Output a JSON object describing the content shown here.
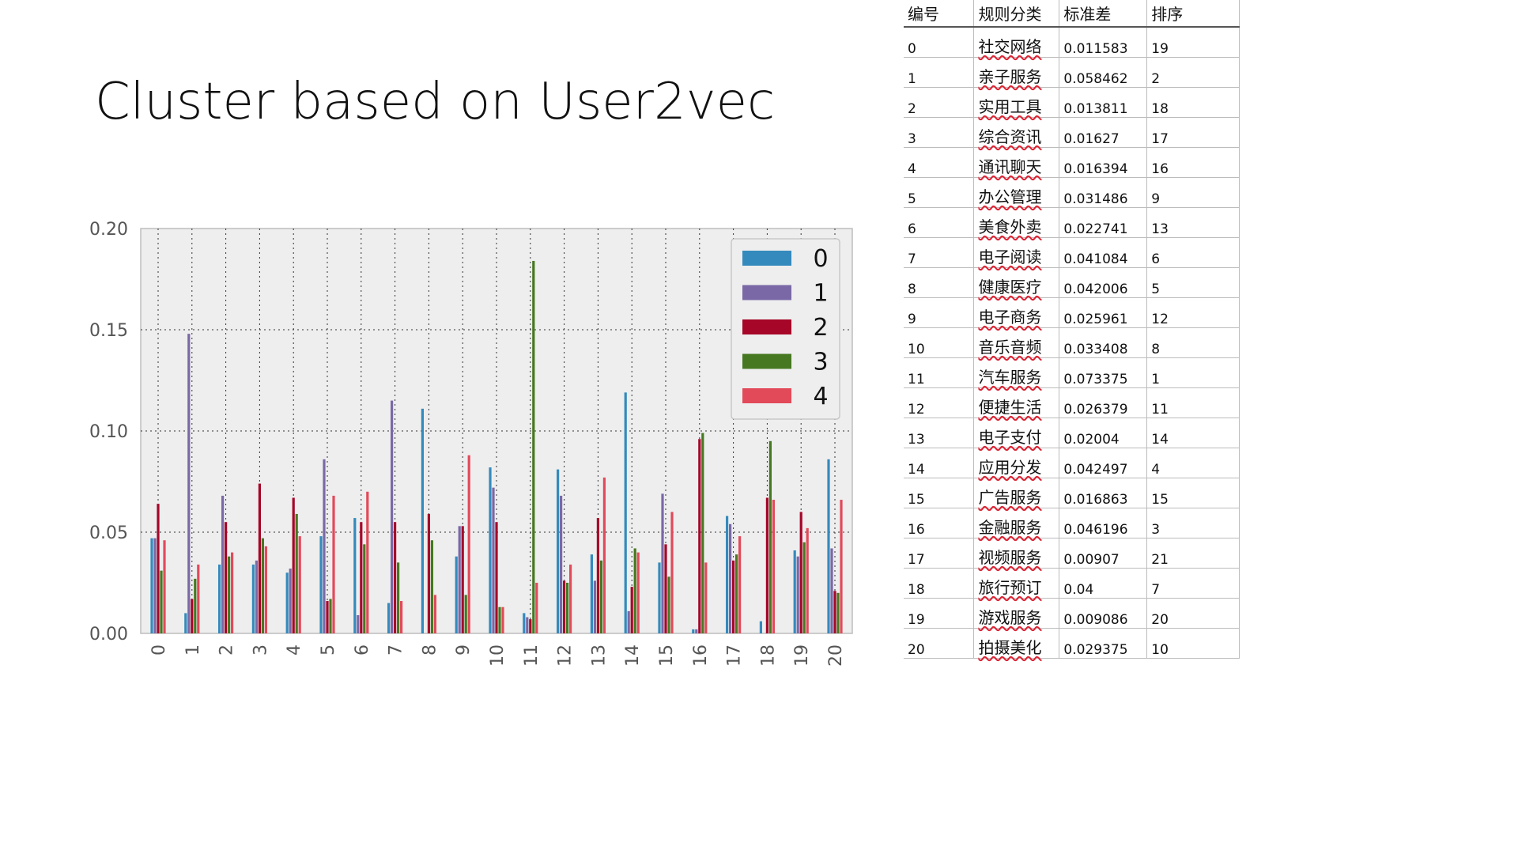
{
  "slide": {
    "title": "Cluster based on User2vec"
  },
  "colors": {
    "c0": "#348ABD",
    "c1": "#7A68A6",
    "c2": "#A60628",
    "c3": "#467821",
    "c4": "#E24A5A",
    "plot_bg": "#EEEEEE"
  },
  "table": {
    "headers": [
      "编号",
      "规则分类",
      "标准差",
      "排序"
    ],
    "rows": [
      [
        "0",
        "社交网络",
        "0.011583",
        "19"
      ],
      [
        "1",
        "亲子服务",
        "0.058462",
        "2"
      ],
      [
        "2",
        "实用工具",
        "0.013811",
        "18"
      ],
      [
        "3",
        "综合资讯",
        "0.01627",
        "17"
      ],
      [
        "4",
        "通讯聊天",
        "0.016394",
        "16"
      ],
      [
        "5",
        "办公管理",
        "0.031486",
        "9"
      ],
      [
        "6",
        "美食外卖",
        "0.022741",
        "13"
      ],
      [
        "7",
        "电子阅读",
        "0.041084",
        "6"
      ],
      [
        "8",
        "健康医疗",
        "0.042006",
        "5"
      ],
      [
        "9",
        "电子商务",
        "0.025961",
        "12"
      ],
      [
        "10",
        "音乐音频",
        "0.033408",
        "8"
      ],
      [
        "11",
        "汽车服务",
        "0.073375",
        "1"
      ],
      [
        "12",
        "便捷生活",
        "0.026379",
        "11"
      ],
      [
        "13",
        "电子支付",
        "0.02004",
        "14"
      ],
      [
        "14",
        "应用分发",
        "0.042497",
        "4"
      ],
      [
        "15",
        "广告服务",
        "0.016863",
        "15"
      ],
      [
        "16",
        "金融服务",
        "0.046196",
        "3"
      ],
      [
        "17",
        "视频服务",
        "0.00907",
        "21"
      ],
      [
        "18",
        "旅行预订",
        "0.04",
        "7"
      ],
      [
        "19",
        "游戏服务",
        "0.009086",
        "20"
      ],
      [
        "20",
        "拍摄美化",
        "0.029375",
        "10"
      ]
    ]
  },
  "chart_data": {
    "type": "bar",
    "categories": [
      "0",
      "1",
      "2",
      "3",
      "4",
      "5",
      "6",
      "7",
      "8",
      "9",
      "10",
      "11",
      "12",
      "13",
      "14",
      "15",
      "16",
      "17",
      "18",
      "19",
      "20"
    ],
    "yticks": [
      "0.00",
      "0.05",
      "0.10",
      "0.15",
      "0.20"
    ],
    "ylim": [
      0,
      0.2
    ],
    "grid": true,
    "legend_position": "top-right",
    "series": [
      {
        "name": "0",
        "values": [
          0.047,
          0.01,
          0.034,
          0.034,
          0.03,
          0.048,
          0.057,
          0.015,
          0.111,
          0.038,
          0.082,
          0.01,
          0.081,
          0.039,
          0.119,
          0.035,
          0.002,
          0.058,
          0.006,
          0.041,
          0.086
        ]
      },
      {
        "name": "1",
        "values": [
          0.047,
          0.148,
          0.068,
          0.036,
          0.032,
          0.086,
          0.009,
          0.115,
          0.0,
          0.053,
          0.072,
          0.008,
          0.068,
          0.026,
          0.011,
          0.069,
          0.002,
          0.054,
          0.0,
          0.038,
          0.042
        ]
      },
      {
        "name": "2",
        "values": [
          0.064,
          0.017,
          0.055,
          0.074,
          0.067,
          0.016,
          0.055,
          0.055,
          0.059,
          0.053,
          0.055,
          0.007,
          0.026,
          0.057,
          0.023,
          0.044,
          0.096,
          0.036,
          0.067,
          0.06,
          0.021
        ]
      },
      {
        "name": "3",
        "values": [
          0.031,
          0.027,
          0.038,
          0.047,
          0.059,
          0.017,
          0.044,
          0.035,
          0.046,
          0.019,
          0.013,
          0.184,
          0.025,
          0.036,
          0.042,
          0.028,
          0.099,
          0.039,
          0.095,
          0.045,
          0.02
        ]
      },
      {
        "name": "4",
        "values": [
          0.046,
          0.034,
          0.04,
          0.043,
          0.048,
          0.068,
          0.07,
          0.016,
          0.019,
          0.088,
          0.013,
          0.025,
          0.034,
          0.077,
          0.04,
          0.06,
          0.035,
          0.048,
          0.066,
          0.052,
          0.066
        ]
      }
    ]
  }
}
